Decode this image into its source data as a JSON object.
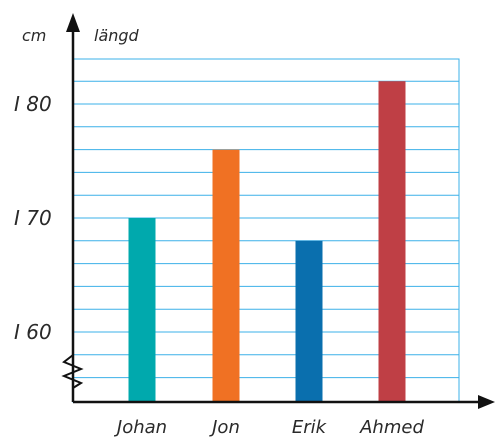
{
  "chart_data": {
    "type": "bar",
    "title": "",
    "ylabel": "längd",
    "yunit": "cm",
    "xlabel": "",
    "categories": [
      "Johan",
      "Jon",
      "Erik",
      "Ahmed"
    ],
    "values": [
      170,
      176,
      168,
      182
    ],
    "ylim": [
      155,
      184
    ],
    "yticks": [
      160,
      170,
      180
    ],
    "ytick_labels": [
      "I 60",
      "I 70",
      "I 80"
    ],
    "grid": true,
    "grid_step": 2,
    "axis_break": true,
    "legend": "none",
    "colors": [
      "#00a9ad",
      "#f07123",
      "#0a6fae",
      "#bf3f45"
    ],
    "grid_color": "#3bb0e8",
    "axis_color": "#111111"
  }
}
